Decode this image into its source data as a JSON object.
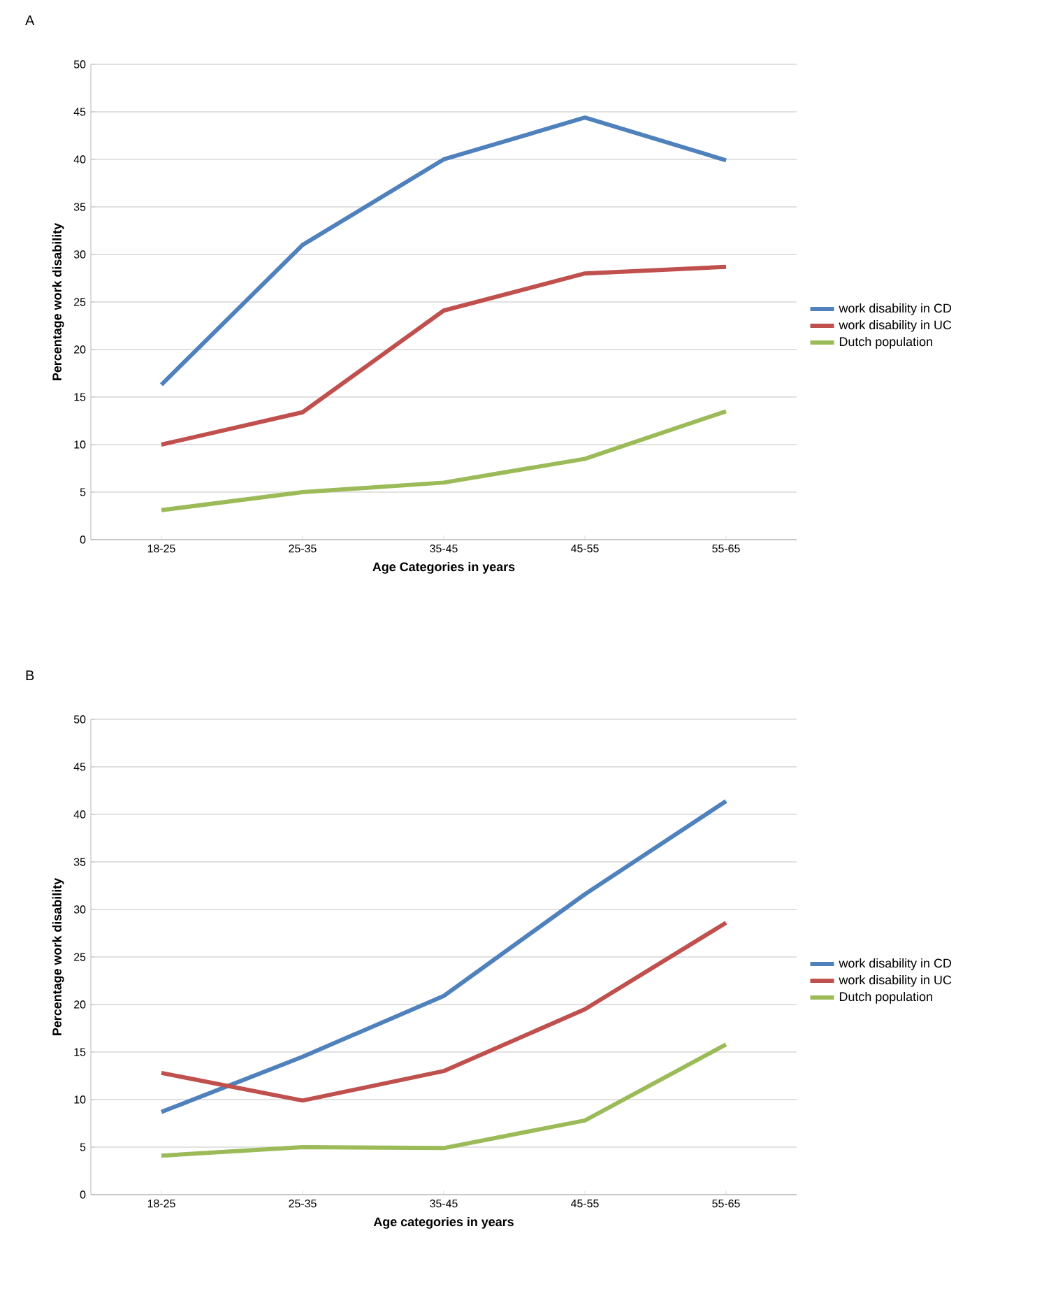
{
  "chart_data": [
    {
      "type": "line",
      "title": "A",
      "xlabel": "Age Categories in years",
      "ylabel": "Percentage work disability",
      "categories": [
        "18-25",
        "25-35",
        "35-45",
        "45-55",
        "55-65"
      ],
      "ylim": [
        0,
        50
      ],
      "yticks": [
        0,
        5,
        10,
        15,
        20,
        25,
        30,
        35,
        40,
        45,
        50
      ],
      "grid": "y",
      "legend": "right",
      "marker": "none",
      "line_style": "solid",
      "series": [
        {
          "name": "work disability in CD",
          "color": "#4f81bd",
          "values": [
            16.3,
            31,
            40,
            44.4,
            39.9
          ]
        },
        {
          "name": "work disability in UC",
          "color": "#c0504d",
          "values": [
            10,
            13.4,
            24.1,
            28,
            28.7
          ]
        },
        {
          "name": "Dutch population",
          "color": "#9bbb59",
          "values": [
            3.1,
            5,
            6,
            8.5,
            13.5
          ]
        }
      ]
    },
    {
      "type": "line",
      "title": "B",
      "xlabel": "Age categories in years",
      "ylabel": "Percentage work disability",
      "categories": [
        "18-25",
        "25-35",
        "35-45",
        "45-55",
        "55-65"
      ],
      "ylim": [
        0,
        50
      ],
      "yticks": [
        0,
        5,
        10,
        15,
        20,
        25,
        30,
        35,
        40,
        45,
        50
      ],
      "grid": "y",
      "legend": "right",
      "marker": "none",
      "line_style": "solid",
      "series": [
        {
          "name": "work disability in CD",
          "color": "#4f81bd",
          "values": [
            8.7,
            14.5,
            20.9,
            31.6,
            41.4
          ]
        },
        {
          "name": "work disability in UC",
          "color": "#c0504d",
          "values": [
            12.8,
            9.9,
            13,
            19.5,
            28.6
          ]
        },
        {
          "name": "Dutch population",
          "color": "#9bbb59",
          "values": [
            4.1,
            5,
            4.9,
            7.8,
            15.8
          ]
        }
      ]
    }
  ]
}
